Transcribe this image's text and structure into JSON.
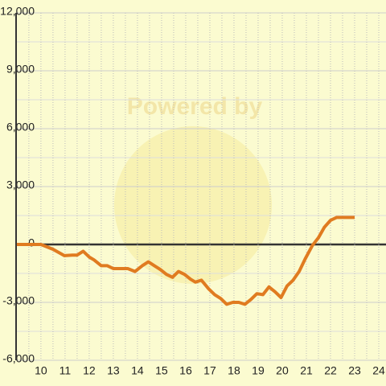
{
  "chart_data": {
    "type": "line",
    "watermark": "Powered by",
    "x": [
      9.0,
      10.0,
      10.5,
      10.97,
      11.3,
      11.5,
      11.75,
      12.0,
      12.2,
      12.5,
      12.75,
      13.0,
      13.6,
      13.9,
      14.2,
      14.45,
      14.7,
      14.95,
      15.2,
      15.45,
      15.7,
      15.95,
      16.2,
      16.4,
      16.65,
      16.95,
      17.2,
      17.45,
      17.7,
      17.95,
      18.2,
      18.45,
      18.7,
      18.95,
      19.2,
      19.45,
      19.7,
      19.95,
      20.2,
      20.45,
      20.7,
      20.95,
      21.25,
      21.5,
      21.75,
      22.0,
      22.25,
      23.0
    ],
    "series": [
      {
        "color": "#e07b20",
        "values": [
          0,
          0,
          -250,
          -580,
          -550,
          -550,
          -350,
          -650,
          -800,
          -1100,
          -1100,
          -1250,
          -1250,
          -1400,
          -1100,
          -900,
          -1100,
          -1300,
          -1550,
          -1700,
          -1400,
          -1550,
          -1800,
          -1950,
          -1850,
          -2300,
          -2600,
          -2800,
          -3100,
          -3000,
          -3000,
          -3100,
          -2850,
          -2550,
          -2600,
          -2200,
          -2450,
          -2750,
          -2150,
          -1850,
          -1400,
          -750,
          -50,
          350,
          900,
          1250,
          1400,
          1400
        ]
      }
    ],
    "xlim": [
      8.97,
      24.3
    ],
    "xticks": [
      10,
      11,
      12,
      13,
      14,
      15,
      16,
      17,
      18,
      19,
      20,
      21,
      22,
      23,
      24
    ],
    "ylim": [
      -6000,
      12000
    ],
    "yticks": [
      {
        "value": -6000,
        "label": "-6,000"
      },
      {
        "value": -3000,
        "label": "-3,000"
      },
      0,
      {
        "value": 3000,
        "label": "3,000"
      },
      {
        "value": 6000,
        "label": "6,000"
      },
      {
        "value": 9000,
        "label": "9,000"
      },
      {
        "value": 12000,
        "label": "12,000"
      }
    ],
    "grid": true
  }
}
